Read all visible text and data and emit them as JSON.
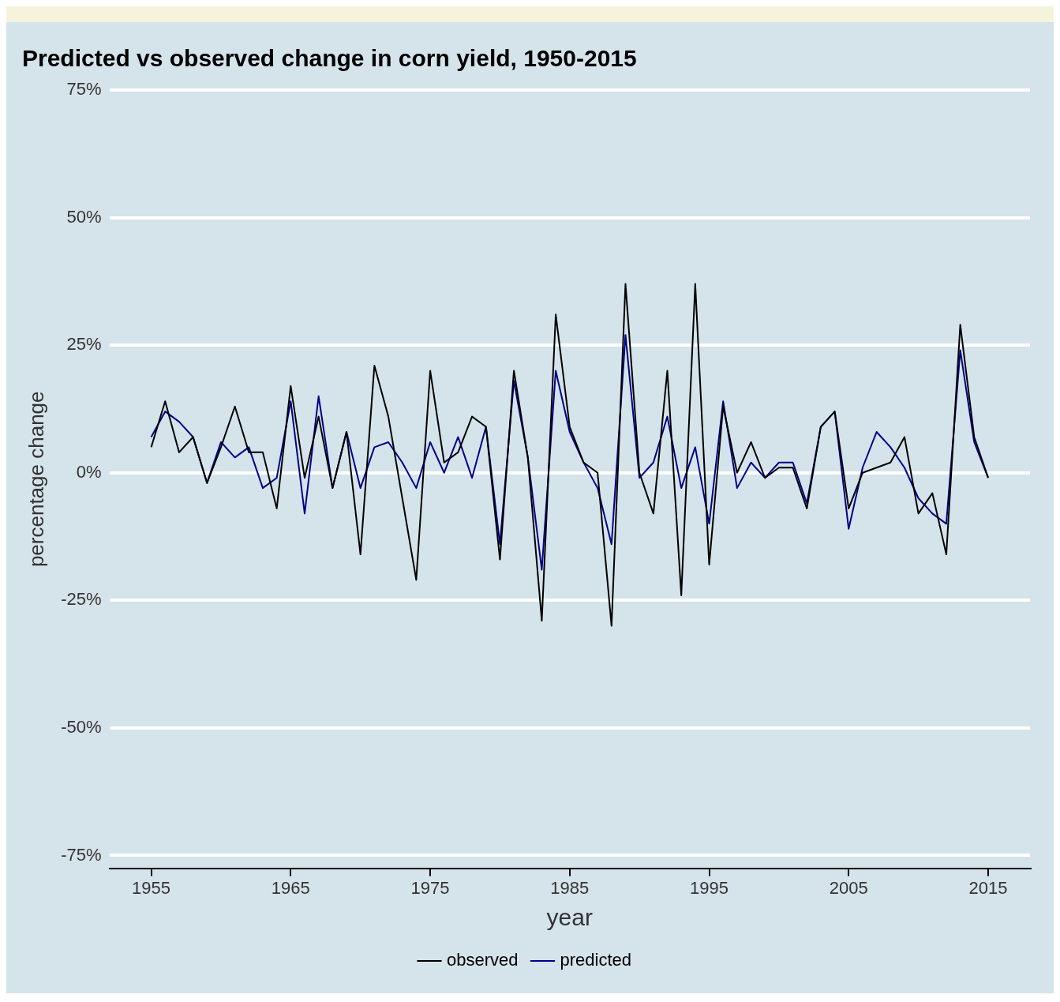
{
  "chart_data": {
    "type": "line",
    "title": "Predicted vs observed change in corn yield, 1950-2015",
    "xlabel": "year",
    "ylabel": "percentage change",
    "x": [
      1955,
      1956,
      1957,
      1958,
      1959,
      1960,
      1961,
      1962,
      1963,
      1964,
      1965,
      1966,
      1967,
      1968,
      1969,
      1970,
      1971,
      1972,
      1973,
      1974,
      1975,
      1976,
      1977,
      1978,
      1979,
      1980,
      1981,
      1982,
      1983,
      1984,
      1985,
      1986,
      1987,
      1988,
      1989,
      1990,
      1991,
      1992,
      1993,
      1994,
      1995,
      1996,
      1997,
      1998,
      1999,
      2000,
      2001,
      2002,
      2003,
      2004,
      2005,
      2006,
      2007,
      2008,
      2009,
      2010,
      2011,
      2012,
      2013,
      2014,
      2015
    ],
    "series": [
      {
        "name": "observed",
        "color": "#000000",
        "values": [
          5,
          14,
          4,
          7,
          -2,
          5,
          13,
          4,
          4,
          -7,
          17,
          -1,
          11,
          -3,
          8,
          -16,
          21,
          11,
          -5,
          -21,
          20,
          2,
          4,
          11,
          9,
          -17,
          20,
          3,
          -29,
          31,
          9,
          2,
          0,
          -30,
          37,
          0,
          -8,
          20,
          -24,
          37,
          -18,
          13,
          0,
          6,
          -1,
          1,
          1,
          -7,
          9,
          12,
          -7,
          0,
          1,
          2,
          7,
          -8,
          -4,
          -16,
          29,
          7,
          -1
        ]
      },
      {
        "name": "predicted",
        "color": "#00008b",
        "values": [
          7,
          12,
          10,
          7,
          -2,
          6,
          3,
          5,
          -3,
          -1,
          14,
          -8,
          15,
          -3,
          8,
          -3,
          5,
          6,
          2,
          -3,
          6,
          0,
          7,
          -1,
          9,
          -14,
          18,
          3,
          -19,
          20,
          8,
          2,
          -3,
          -14,
          27,
          -1,
          2,
          11,
          -3,
          5,
          -10,
          14,
          -3,
          2,
          -1,
          2,
          2,
          -6,
          9,
          12,
          -11,
          1,
          8,
          5,
          1,
          -5,
          -8,
          -10,
          24,
          6,
          -1
        ]
      }
    ],
    "xlim": [
      1952,
      2018
    ],
    "xticks": [
      1955,
      1965,
      1975,
      1985,
      1995,
      2005,
      2015
    ],
    "ylim": [
      -77.5,
      75
    ],
    "yticks": [
      {
        "value": -75,
        "label": "-75%"
      },
      {
        "value": -50,
        "label": "-50%"
      },
      {
        "value": -25,
        "label": "-25%"
      },
      {
        "value": 0,
        "label": "0%"
      },
      {
        "value": 25,
        "label": "25%"
      },
      {
        "value": 50,
        "label": "50%"
      },
      {
        "value": 75,
        "label": "75%"
      }
    ],
    "grid": "y",
    "legend": "bottom",
    "marker": "none",
    "line_style": "solid"
  }
}
